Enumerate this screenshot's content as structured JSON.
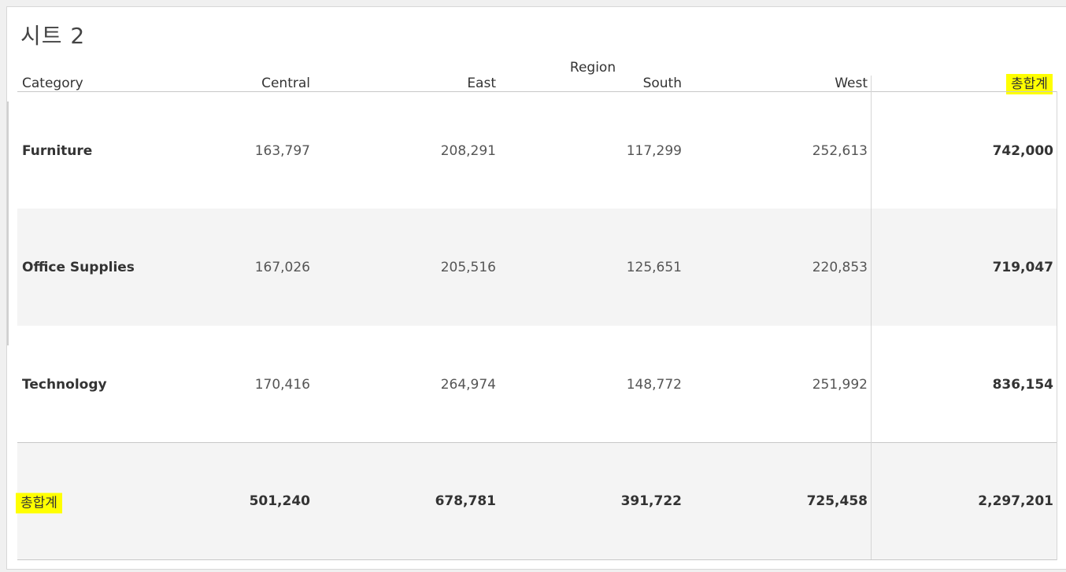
{
  "sheet": {
    "title": "시트 2"
  },
  "table": {
    "column_group_label": "Region",
    "row_header": "Category",
    "columns": [
      "Central",
      "East",
      "South",
      "West"
    ],
    "grand_total_label": "총합계",
    "rows": [
      {
        "category": "Furniture",
        "values": [
          "163,797",
          "208,291",
          "117,299",
          "252,613"
        ],
        "total": "742,000"
      },
      {
        "category": "Office Supplies",
        "values": [
          "167,026",
          "205,516",
          "125,651",
          "220,853"
        ],
        "total": "719,047"
      },
      {
        "category": "Technology",
        "values": [
          "170,416",
          "264,974",
          "148,772",
          "251,992"
        ],
        "total": "836,154"
      }
    ],
    "totals_row": {
      "label": "총합계",
      "values": [
        "501,240",
        "678,781",
        "391,722",
        "725,458"
      ],
      "total": "2,297,201"
    }
  },
  "colors": {
    "highlight": "#ffff00",
    "shade": "#f4f4f4"
  }
}
